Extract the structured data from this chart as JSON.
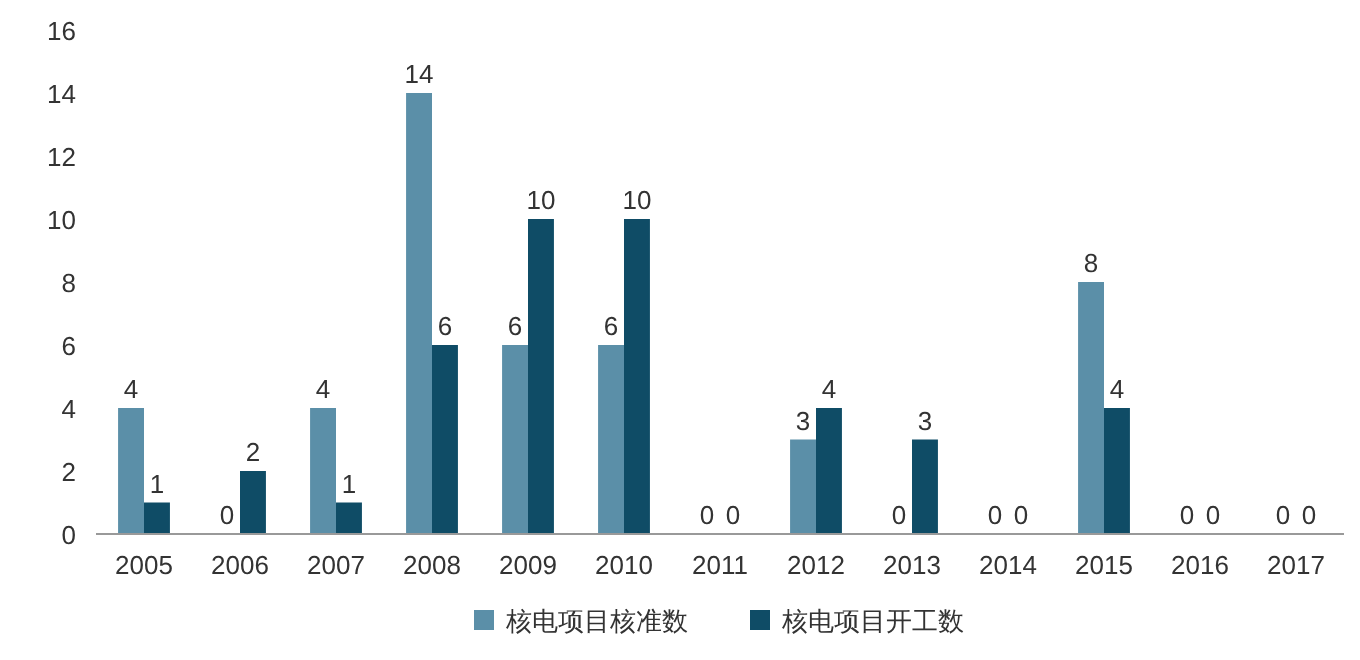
{
  "chart_data": {
    "type": "bar",
    "categories": [
      "2005",
      "2006",
      "2007",
      "2008",
      "2009",
      "2010",
      "2011",
      "2012",
      "2013",
      "2014",
      "2015",
      "2016",
      "2017"
    ],
    "series": [
      {
        "name": "核电项目核准数",
        "color": "#5b8fa8",
        "values": [
          4,
          0,
          4,
          14,
          6,
          6,
          0,
          3,
          0,
          0,
          8,
          0,
          0
        ]
      },
      {
        "name": "核电项目开工数",
        "color": "#0f4c66",
        "values": [
          1,
          2,
          1,
          6,
          10,
          10,
          0,
          4,
          3,
          0,
          4,
          0,
          0
        ]
      }
    ],
    "ylim": [
      0,
      16
    ],
    "yticks": [
      0,
      2,
      4,
      6,
      8,
      10,
      12,
      14,
      16
    ],
    "grid": false,
    "legend": "bottom",
    "data_labels": true
  }
}
